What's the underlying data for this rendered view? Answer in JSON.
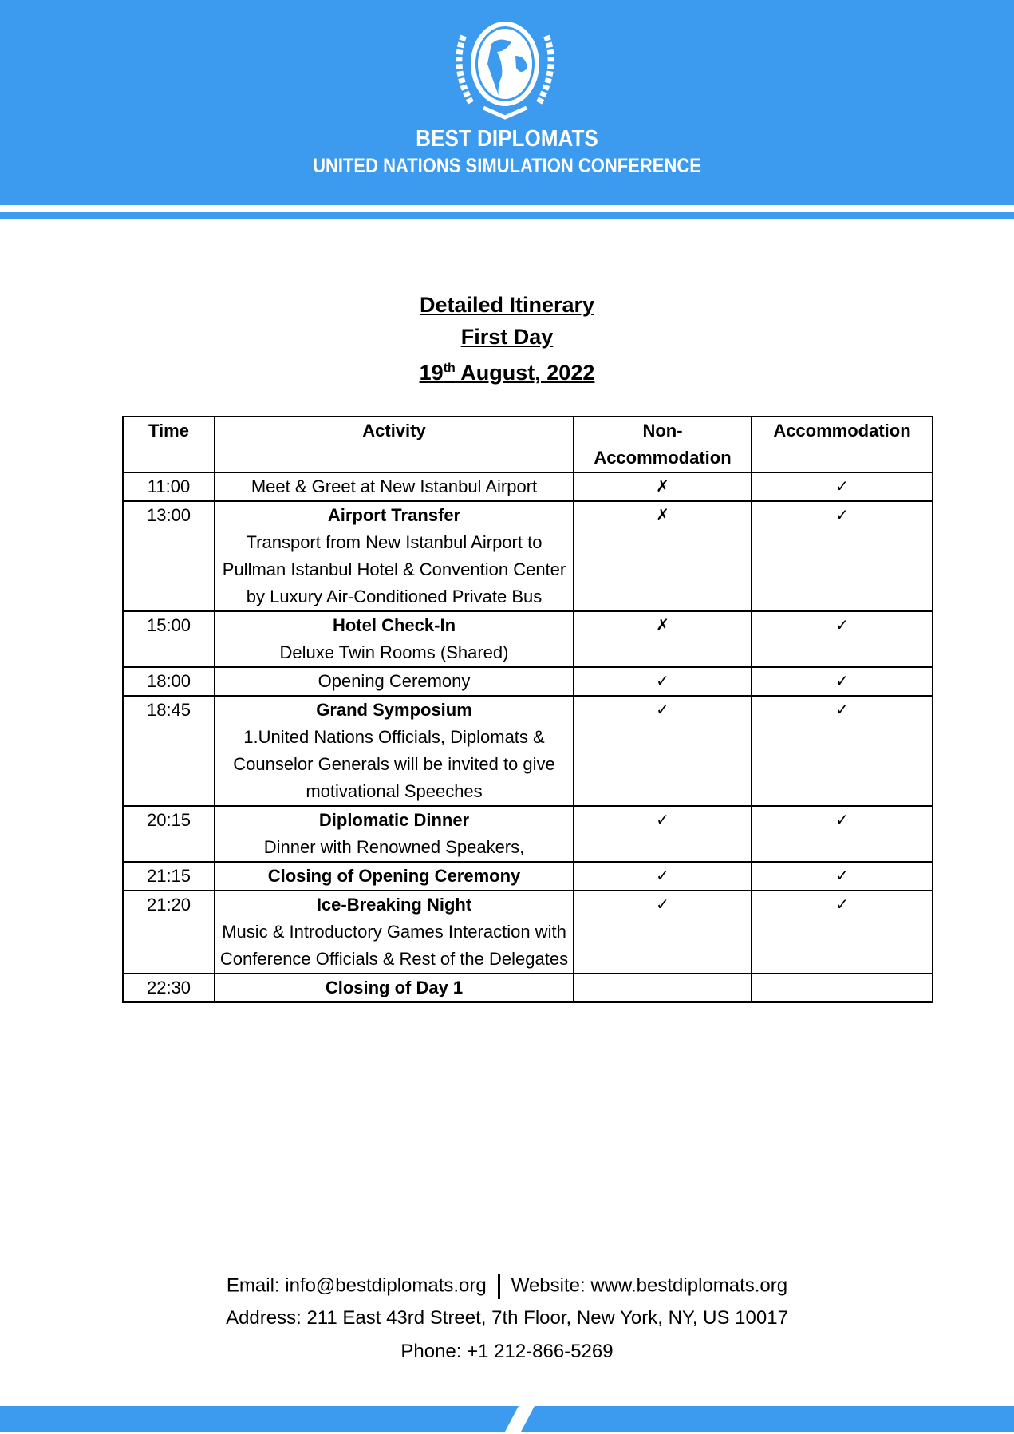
{
  "header": {
    "brand": "BEST DIPLOMATS",
    "subtitle": "UNITED NATIONS SIMULATION CONFERENCE",
    "logo": "un-globe-wreath-logo",
    "color": "#3d9bef"
  },
  "titles": {
    "line1": "Detailed Itinerary",
    "line2": "First Day",
    "date_day": "19",
    "date_sup": "th",
    "date_rest": " August, 2022"
  },
  "table": {
    "headers": [
      "Time",
      "Activity",
      "Non-Accommodation",
      "Accommodation"
    ],
    "rows": [
      {
        "time": "11:00",
        "title": "",
        "desc": "Meet & Greet at New Istanbul Airport",
        "non": "✗",
        "acc": "✓"
      },
      {
        "time": "13:00",
        "title": "Airport Transfer",
        "desc": "Transport from New Istanbul Airport to Pullman Istanbul Hotel & Convention Center by Luxury Air-Conditioned Private Bus",
        "non": "✗",
        "acc": "✓"
      },
      {
        "time": "15:00",
        "title": "Hotel Check-In",
        "desc": "Deluxe Twin Rooms (Shared)",
        "non": "✗",
        "acc": "✓"
      },
      {
        "time": "18:00",
        "title": "",
        "desc": "Opening Ceremony",
        "non": "✓",
        "acc": "✓"
      },
      {
        "time": "18:45",
        "title": "Grand Symposium",
        "desc": "1.United Nations Officials, Diplomats & Counselor Generals will be invited to give motivational Speeches",
        "non": "✓",
        "acc": "✓"
      },
      {
        "time": "20:15",
        "title": "Diplomatic Dinner",
        "desc": "Dinner with Renowned Speakers,",
        "non": "✓",
        "acc": "✓"
      },
      {
        "time": "21:15",
        "title": "Closing of Opening Ceremony",
        "desc": "",
        "non": "✓",
        "acc": "✓"
      },
      {
        "time": "21:20",
        "title": "Ice-Breaking Night",
        "desc": "Music & Introductory Games Interaction with Conference Officials & Rest of the Delegates",
        "non": "✓",
        "acc": "✓"
      },
      {
        "time": "22:30",
        "title": "Closing of Day 1",
        "desc": "",
        "non": "",
        "acc": ""
      }
    ]
  },
  "footer": {
    "email": "Email: info@bestdiplomats.org",
    "website": "Website: www.bestdiplomats.org",
    "address": "Address: 211 East 43rd Street, 7th Floor, New York, NY, US 10017",
    "phone": "Phone: +1 212-866-5269"
  }
}
